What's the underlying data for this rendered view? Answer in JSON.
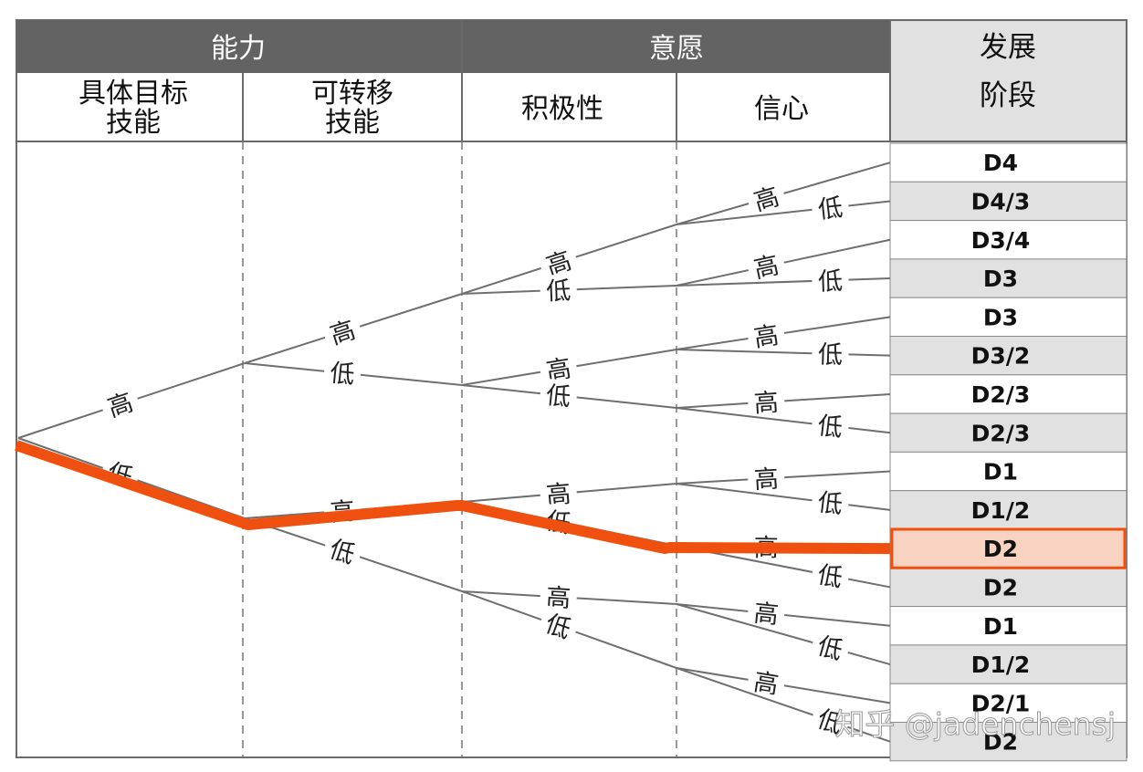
{
  "header": {
    "ability": "能力",
    "willingness": "意愿",
    "stage": [
      "发展",
      "阶段"
    ]
  },
  "subheaders": {
    "specific_skills": [
      "具体目标",
      "技能"
    ],
    "transferable_skills": [
      "可转移",
      "技能"
    ],
    "motivation": "积极性",
    "confidence": "信心"
  },
  "labels": {
    "high": "高",
    "low": "低"
  },
  "stages": [
    "D4",
    "D4/3",
    "D3/4",
    "D3",
    "D3",
    "D3/2",
    "D2/3",
    "D2/3",
    "D1",
    "D1/2",
    "D2",
    "D2",
    "D1",
    "D1/2",
    "D2/1",
    "D2"
  ],
  "highlight": {
    "index": 10,
    "path": "低-高-低-高"
  },
  "watermark": "知乎 @jadenchensj",
  "colors": {
    "header_bg": "#636363",
    "stage_header_bg": "#e1e1e1",
    "row_shaded": "#e1e1e1",
    "branch": "#6f6f6f",
    "highlight": "#f0500f",
    "highlight_fill": "#f9d3c1"
  }
}
